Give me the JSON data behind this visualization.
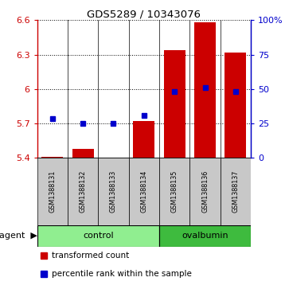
{
  "title": "GDS5289 / 10343076",
  "samples": [
    "GSM1388131",
    "GSM1388132",
    "GSM1388133",
    "GSM1388134",
    "GSM1388135",
    "GSM1388136",
    "GSM1388137"
  ],
  "red_values": [
    5.41,
    5.48,
    5.405,
    5.72,
    6.34,
    6.58,
    6.32
  ],
  "blue_values": [
    5.74,
    5.7,
    5.7,
    5.77,
    5.98,
    6.01,
    5.98
  ],
  "ylim": [
    5.4,
    6.6
  ],
  "yticks_red": [
    5.4,
    5.7,
    6.0,
    6.3,
    6.6
  ],
  "yticks_red_labels": [
    "5.4",
    "5.7",
    "6",
    "6.3",
    "6.6"
  ],
  "yticks_blue": [
    0,
    25,
    50,
    75,
    100
  ],
  "yticks_blue_labels": [
    "0",
    "25",
    "50",
    "75",
    "100%"
  ],
  "legend_red": "transformed count",
  "legend_blue": "percentile rank within the sample",
  "red_color": "#CC0000",
  "blue_color": "#0000CC",
  "green_light": "#90EE90",
  "green_bright": "#3EBB3E",
  "gray_color": "#C8C8C8",
  "bar_width": 0.7
}
